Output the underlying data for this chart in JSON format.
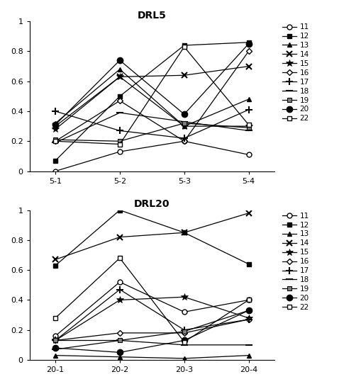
{
  "drl5": {
    "title": "DRL5",
    "xtick_labels": [
      "5-1",
      "5-2",
      "5-3",
      "5-4"
    ],
    "series": {
      "11": [
        0.0,
        0.13,
        0.2,
        0.11
      ],
      "12": [
        0.07,
        0.5,
        0.84,
        0.86
      ],
      "13": [
        0.32,
        0.68,
        0.3,
        0.48
      ],
      "14": [
        0.3,
        0.63,
        0.64,
        0.7
      ],
      "15": [
        0.28,
        0.63,
        0.3,
        0.3
      ],
      "16": [
        0.2,
        0.47,
        0.2,
        0.8
      ],
      "17": [
        0.4,
        0.27,
        0.22,
        0.41
      ],
      "18": [
        0.19,
        0.39,
        0.33,
        0.27
      ],
      "19": [
        0.21,
        0.2,
        0.32,
        0.29
      ],
      "20": [
        0.31,
        0.74,
        0.38,
        0.85
      ],
      "22": [
        0.2,
        0.18,
        0.83,
        0.31
      ]
    }
  },
  "drl20": {
    "title": "DRL20",
    "xtick_labels": [
      "20-1",
      "20-2",
      "20-3",
      "20-4"
    ],
    "series": {
      "11": [
        0.16,
        0.52,
        0.32,
        0.4
      ],
      "12": [
        0.63,
        1.0,
        0.85,
        0.64
      ],
      "13": [
        0.03,
        0.02,
        0.01,
        0.03
      ],
      "14": [
        0.67,
        0.82,
        0.85,
        0.98
      ],
      "15": [
        0.13,
        0.4,
        0.42,
        0.28
      ],
      "16": [
        0.13,
        0.18,
        0.18,
        0.27
      ],
      "17": [
        0.13,
        0.47,
        0.2,
        0.27
      ],
      "18": [
        0.07,
        0.13,
        0.1,
        0.1
      ],
      "19": [
        0.13,
        0.13,
        0.19,
        0.33
      ],
      "20": [
        0.08,
        0.05,
        0.13,
        0.33
      ],
      "22": [
        0.28,
        0.68,
        0.12,
        0.4
      ]
    }
  },
  "series_keys": [
    "11",
    "12",
    "13",
    "14",
    "15",
    "16",
    "17",
    "18",
    "19",
    "20",
    "22"
  ],
  "ylim": [
    0,
    1
  ],
  "yticks": [
    0,
    0.2,
    0.4,
    0.6,
    0.8,
    1
  ],
  "background": "#ffffff"
}
